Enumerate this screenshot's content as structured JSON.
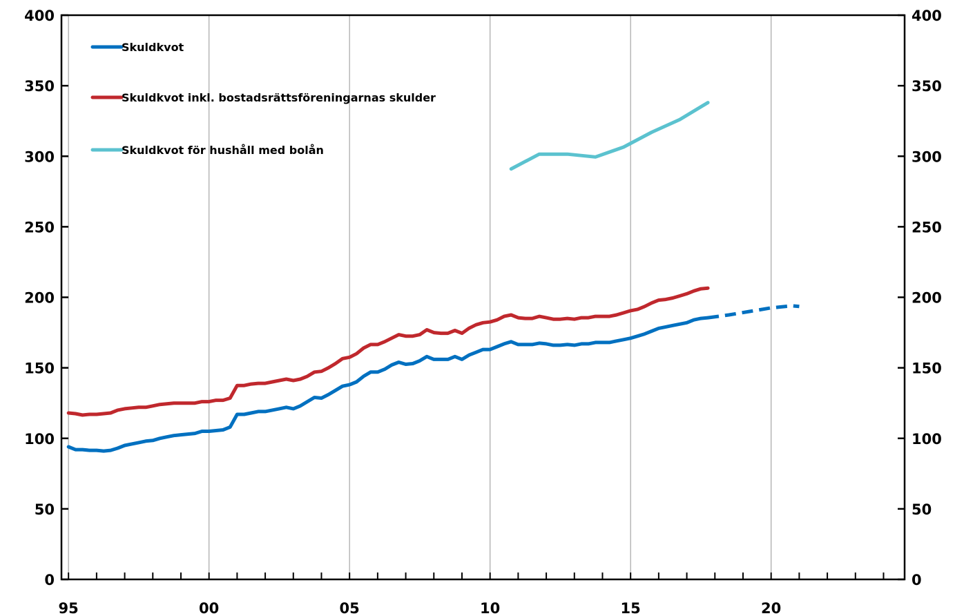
{
  "chart_data": {
    "type": "line",
    "title": "",
    "xlabel": "",
    "ylabel": "",
    "xlim": [
      1994.75,
      2024.75
    ],
    "ylim": [
      0,
      400
    ],
    "y_ticks": [
      0,
      50,
      100,
      150,
      200,
      250,
      300,
      350,
      400
    ],
    "y_tick_labels": [
      "0",
      "50",
      "100",
      "150",
      "200",
      "250",
      "300",
      "350",
      "400"
    ],
    "x_ticks": [
      1995,
      2000,
      2005,
      2010,
      2015,
      2020
    ],
    "x_tick_labels": [
      "95",
      "00",
      "05",
      "10",
      "15",
      "20"
    ],
    "secondary_y_axis": true,
    "grid": "vertical",
    "legend_position": "top-left",
    "series": [
      {
        "name": "Skuldkvot",
        "color": "#0070C0",
        "style": "solid",
        "points": [
          [
            1995.0,
            94
          ],
          [
            1995.25,
            92
          ],
          [
            1995.5,
            92
          ],
          [
            1995.75,
            91.5
          ],
          [
            1996.0,
            91.5
          ],
          [
            1996.25,
            91
          ],
          [
            1996.5,
            91.5
          ],
          [
            1996.75,
            93
          ],
          [
            1997.0,
            95
          ],
          [
            1997.25,
            96
          ],
          [
            1997.5,
            97
          ],
          [
            1997.75,
            98
          ],
          [
            1998.0,
            98.5
          ],
          [
            1998.25,
            100
          ],
          [
            1998.5,
            101
          ],
          [
            1998.75,
            102
          ],
          [
            1999.0,
            102.5
          ],
          [
            1999.25,
            103
          ],
          [
            1999.5,
            103.5
          ],
          [
            1999.75,
            105
          ],
          [
            2000.0,
            105
          ],
          [
            2000.25,
            105.5
          ],
          [
            2000.5,
            106
          ],
          [
            2000.75,
            108
          ],
          [
            2001.0,
            117
          ],
          [
            2001.25,
            117
          ],
          [
            2001.5,
            118
          ],
          [
            2001.75,
            119
          ],
          [
            2002.0,
            119
          ],
          [
            2002.25,
            120
          ],
          [
            2002.5,
            121
          ],
          [
            2002.75,
            122
          ],
          [
            2003.0,
            121
          ],
          [
            2003.25,
            123
          ],
          [
            2003.5,
            126
          ],
          [
            2003.75,
            129
          ],
          [
            2004.0,
            128.5
          ],
          [
            2004.25,
            131
          ],
          [
            2004.5,
            134
          ],
          [
            2004.75,
            137
          ],
          [
            2005.0,
            138
          ],
          [
            2005.25,
            140
          ],
          [
            2005.5,
            144
          ],
          [
            2005.75,
            147
          ],
          [
            2006.0,
            147
          ],
          [
            2006.25,
            149
          ],
          [
            2006.5,
            152
          ],
          [
            2006.75,
            154
          ],
          [
            2007.0,
            152.5
          ],
          [
            2007.25,
            153
          ],
          [
            2007.5,
            155
          ],
          [
            2007.75,
            158
          ],
          [
            2008.0,
            156
          ],
          [
            2008.25,
            156
          ],
          [
            2008.5,
            156
          ],
          [
            2008.75,
            158
          ],
          [
            2009.0,
            156
          ],
          [
            2009.25,
            159
          ],
          [
            2009.5,
            161
          ],
          [
            2009.75,
            163
          ],
          [
            2010.0,
            163
          ],
          [
            2010.25,
            165
          ],
          [
            2010.5,
            167
          ],
          [
            2010.75,
            168.5
          ],
          [
            2011.0,
            166.5
          ],
          [
            2011.25,
            166.5
          ],
          [
            2011.5,
            166.5
          ],
          [
            2011.75,
            167.5
          ],
          [
            2012.0,
            167
          ],
          [
            2012.25,
            166
          ],
          [
            2012.5,
            166
          ],
          [
            2012.75,
            166.5
          ],
          [
            2013.0,
            166
          ],
          [
            2013.25,
            167
          ],
          [
            2013.5,
            167
          ],
          [
            2013.75,
            168
          ],
          [
            2014.0,
            168
          ],
          [
            2014.25,
            168
          ],
          [
            2014.5,
            169
          ],
          [
            2014.75,
            170
          ],
          [
            2015.0,
            171
          ],
          [
            2015.25,
            172.5
          ],
          [
            2015.5,
            174
          ],
          [
            2015.75,
            176
          ],
          [
            2016.0,
            178
          ],
          [
            2016.25,
            179
          ],
          [
            2016.5,
            180
          ],
          [
            2016.75,
            181
          ],
          [
            2017.0,
            182
          ],
          [
            2017.25,
            184
          ],
          [
            2017.5,
            185
          ],
          [
            2017.75,
            185.5
          ]
        ]
      },
      {
        "name": "Skuldkvot inkl. bostadsrättsföreningarnas skulder",
        "color": "#C0282D",
        "style": "solid",
        "points": [
          [
            1995.0,
            118
          ],
          [
            1995.25,
            117.5
          ],
          [
            1995.5,
            116.5
          ],
          [
            1995.75,
            117
          ],
          [
            1996.0,
            117
          ],
          [
            1996.25,
            117.5
          ],
          [
            1996.5,
            118
          ],
          [
            1996.75,
            120
          ],
          [
            1997.0,
            121
          ],
          [
            1997.25,
            121.5
          ],
          [
            1997.5,
            122
          ],
          [
            1997.75,
            122
          ],
          [
            1998.0,
            123
          ],
          [
            1998.25,
            124
          ],
          [
            1998.5,
            124.5
          ],
          [
            1998.75,
            125
          ],
          [
            1999.0,
            125
          ],
          [
            1999.25,
            125
          ],
          [
            1999.5,
            125
          ],
          [
            1999.75,
            126
          ],
          [
            2000.0,
            126
          ],
          [
            2000.25,
            127
          ],
          [
            2000.5,
            127
          ],
          [
            2000.75,
            128.5
          ],
          [
            2001.0,
            137.5
          ],
          [
            2001.25,
            137.5
          ],
          [
            2001.5,
            138.5
          ],
          [
            2001.75,
            139
          ],
          [
            2002.0,
            139
          ],
          [
            2002.25,
            140
          ],
          [
            2002.5,
            141
          ],
          [
            2002.75,
            142
          ],
          [
            2003.0,
            141
          ],
          [
            2003.25,
            142
          ],
          [
            2003.5,
            144
          ],
          [
            2003.75,
            147
          ],
          [
            2004.0,
            147.5
          ],
          [
            2004.25,
            150
          ],
          [
            2004.5,
            153
          ],
          [
            2004.75,
            156.5
          ],
          [
            2005.0,
            157.5
          ],
          [
            2005.25,
            160
          ],
          [
            2005.5,
            164
          ],
          [
            2005.75,
            166.5
          ],
          [
            2006.0,
            166.5
          ],
          [
            2006.25,
            168.5
          ],
          [
            2006.5,
            171
          ],
          [
            2006.75,
            173.5
          ],
          [
            2007.0,
            172.5
          ],
          [
            2007.25,
            172.5
          ],
          [
            2007.5,
            173.5
          ],
          [
            2007.75,
            177
          ],
          [
            2008.0,
            175
          ],
          [
            2008.25,
            174.5
          ],
          [
            2008.5,
            174.5
          ],
          [
            2008.75,
            176.5
          ],
          [
            2009.0,
            174.5
          ],
          [
            2009.25,
            178
          ],
          [
            2009.5,
            180.5
          ],
          [
            2009.75,
            182
          ],
          [
            2010.0,
            182.5
          ],
          [
            2010.25,
            184
          ],
          [
            2010.5,
            186.5
          ],
          [
            2010.75,
            187.5
          ],
          [
            2011.0,
            185.5
          ],
          [
            2011.25,
            185
          ],
          [
            2011.5,
            185
          ],
          [
            2011.75,
            186.5
          ],
          [
            2012.0,
            185.5
          ],
          [
            2012.25,
            184.5
          ],
          [
            2012.5,
            184.5
          ],
          [
            2012.75,
            185
          ],
          [
            2013.0,
            184.5
          ],
          [
            2013.25,
            185.5
          ],
          [
            2013.5,
            185.5
          ],
          [
            2013.75,
            186.5
          ],
          [
            2014.0,
            186.5
          ],
          [
            2014.25,
            186.5
          ],
          [
            2014.5,
            187.5
          ],
          [
            2014.75,
            189
          ],
          [
            2015.0,
            190.5
          ],
          [
            2015.25,
            191.5
          ],
          [
            2015.5,
            193.5
          ],
          [
            2015.75,
            196
          ],
          [
            2016.0,
            198
          ],
          [
            2016.25,
            198.5
          ],
          [
            2016.5,
            199.5
          ],
          [
            2016.75,
            201
          ],
          [
            2017.0,
            202.5
          ],
          [
            2017.25,
            204.5
          ],
          [
            2017.5,
            206
          ],
          [
            2017.75,
            206.5
          ]
        ]
      },
      {
        "name": "Skuldkvot för hushåll med bolån",
        "color": "#5BC2CF",
        "style": "solid",
        "points": [
          [
            2010.75,
            291
          ],
          [
            2011.75,
            301.5
          ],
          [
            2012.75,
            301.5
          ],
          [
            2013.75,
            299.5
          ],
          [
            2014.75,
            306.5
          ],
          [
            2015.75,
            317
          ],
          [
            2016.75,
            326
          ],
          [
            2017.75,
            338
          ]
        ]
      },
      {
        "name": "",
        "color": "#0070C0",
        "style": "dashed",
        "points": [
          [
            2017.75,
            185.5
          ],
          [
            2018.5,
            187.5
          ],
          [
            2019.25,
            190
          ],
          [
            2020.0,
            192.5
          ],
          [
            2020.75,
            194
          ],
          [
            2021.0,
            193.5
          ]
        ]
      }
    ]
  }
}
